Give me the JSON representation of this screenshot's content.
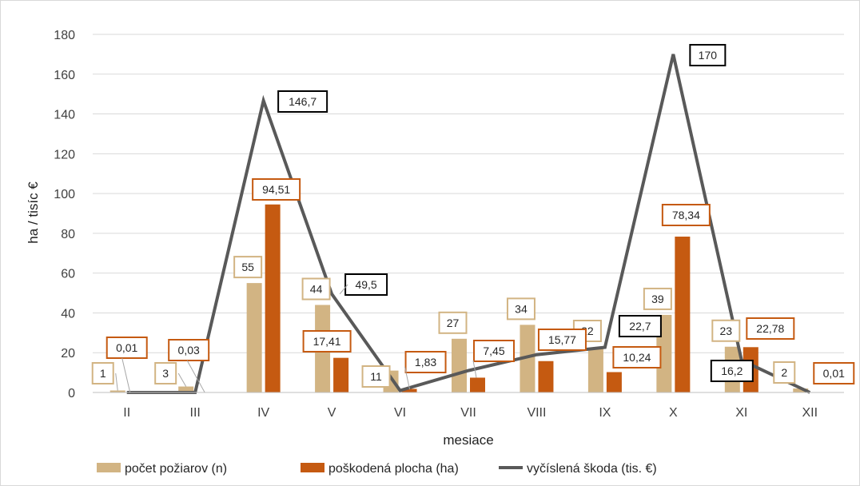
{
  "chart_data": {
    "type": "bar",
    "categories": [
      "II",
      "III",
      "IV",
      "V",
      "VI",
      "VII",
      "VIII",
      "IX",
      "X",
      "XI",
      "XII"
    ],
    "series": [
      {
        "name": "počet požiarov (n)",
        "kind": "bar",
        "color": "#d2b483",
        "values": [
          1,
          3,
          55,
          44,
          11,
          27,
          34,
          22,
          39,
          23,
          2
        ],
        "labels": [
          "1",
          "3",
          "55",
          "44",
          "11",
          "27",
          "34",
          "22",
          "39",
          "23",
          "2"
        ]
      },
      {
        "name": "poškodená plocha (ha)",
        "kind": "bar",
        "color": "#c55a11",
        "values": [
          0.01,
          0.03,
          94.51,
          17.41,
          1.83,
          7.45,
          15.77,
          10.24,
          78.34,
          22.78,
          0.01
        ],
        "labels": [
          "0,01",
          "0,03",
          "94,51",
          "17,41",
          "1,83",
          "7,45",
          "15,77",
          "10,24",
          "78,34",
          "22,78",
          "0,01"
        ]
      },
      {
        "name": "vyčíslená škoda (tis. €)",
        "kind": "line",
        "color": "#595959",
        "values": [
          0,
          0,
          146.7,
          49.5,
          1,
          11,
          19,
          22.7,
          170,
          16.2,
          0
        ],
        "labels": [
          "",
          "",
          "146,7",
          "49,5",
          "",
          "",
          "",
          "22,7",
          "170",
          "16,2",
          ""
        ]
      }
    ],
    "title": "",
    "xlabel": "mesiace",
    "ylabel": "ha / tisíc €",
    "ylim": [
      0,
      180
    ],
    "yticks": [
      0,
      20,
      40,
      60,
      80,
      100,
      120,
      140,
      160,
      180
    ],
    "grid": true,
    "legend": "bottom"
  }
}
